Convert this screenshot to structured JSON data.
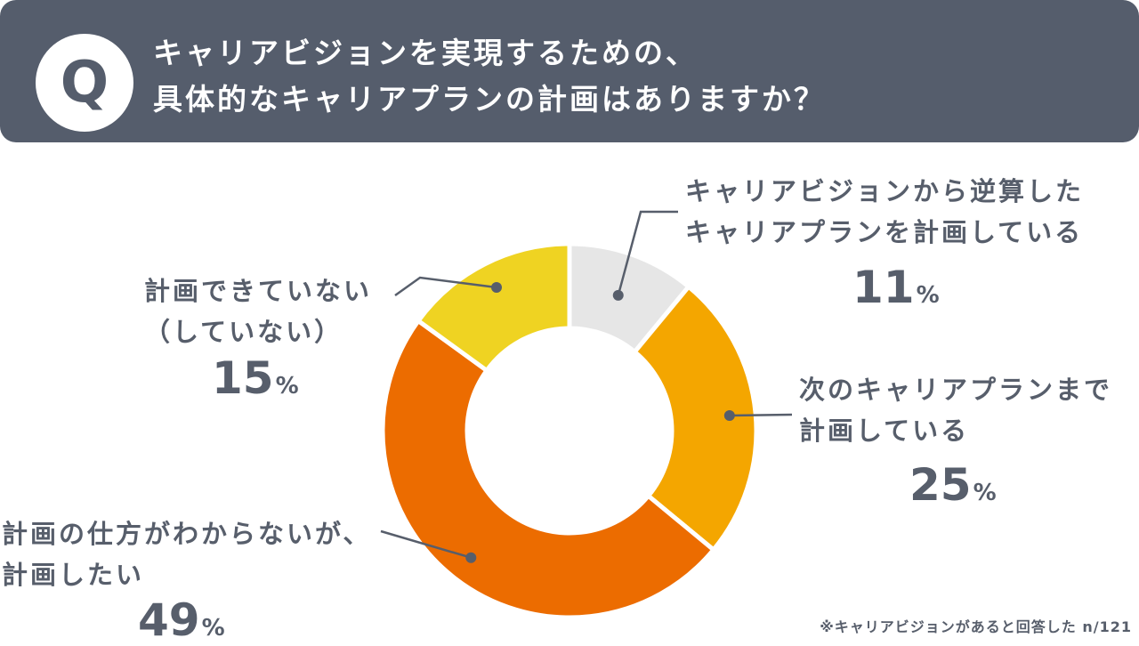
{
  "header": {
    "q_letter": "Q",
    "question_line1": "キャリアビジョンを実現するための、",
    "question_line2": "具体的なキャリアプランの計画はありますか？"
  },
  "chart_data": {
    "type": "pie",
    "donut": true,
    "total_label": "",
    "slices": [
      {
        "label_line1": "キャリアビジョンから逆算した",
        "label_line2": "キャリアプランを計画している",
        "value": 11,
        "unit": "%",
        "color": "#e6e6e6"
      },
      {
        "label_line1": "次のキャリアプランまで",
        "label_line2": "計画している",
        "value": 25,
        "unit": "%",
        "color": "#f4a600"
      },
      {
        "label_line1": "計画の仕方がわからないが、",
        "label_line2": "計画したい",
        "value": 49,
        "unit": "%",
        "color": "#ec6c00"
      },
      {
        "label_line1": "計画できていない",
        "label_line2": "（していない）",
        "value": 15,
        "unit": "%",
        "color": "#efd322"
      }
    ]
  },
  "footnote": "※キャリアビジョンがあると回答した n/121",
  "colors": {
    "header_bg": "#555d6c",
    "text": "#575e6b",
    "leader_line": "#575e6b"
  }
}
